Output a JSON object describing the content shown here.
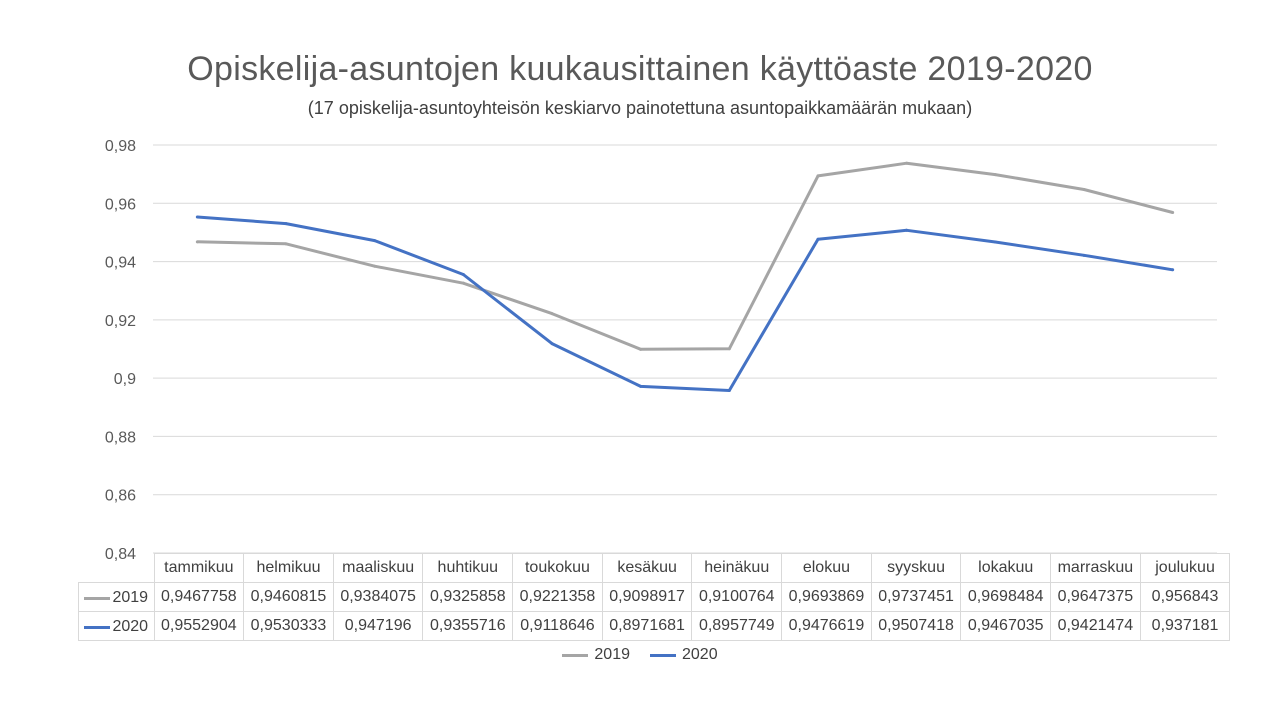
{
  "chart_data": {
    "type": "line",
    "title": "Opiskelija-asuntojen kuukausittainen käyttöaste 2019-2020",
    "subtitle": "(17 opiskelija-asuntoyhteisön keskiarvo painotettuna asuntopaikkamäärän mukaan)",
    "categories": [
      "tammikuu",
      "helmikuu",
      "maaliskuu",
      "huhtikuu",
      "toukokuu",
      "kesäkuu",
      "heinäkuu",
      "elokuu",
      "syyskuu",
      "lokakuu",
      "marraskuu",
      "joulukuu"
    ],
    "series": [
      {
        "name": "2019",
        "color": "#a5a5a5",
        "values": [
          0.9467758,
          0.9460815,
          0.9384075,
          0.9325858,
          0.9221358,
          0.9098917,
          0.9100764,
          0.9693869,
          0.9737451,
          0.9698484,
          0.9647375,
          0.956843
        ],
        "labels": [
          "0,9467758",
          "0,9460815",
          "0,9384075",
          "0,9325858",
          "0,9221358",
          "0,9098917",
          "0,9100764",
          "0,9693869",
          "0,9737451",
          "0,9698484",
          "0,9647375",
          "0,956843"
        ]
      },
      {
        "name": "2020",
        "color": "#4472c4",
        "values": [
          0.9552904,
          0.9530333,
          0.947196,
          0.9355716,
          0.9118646,
          0.8971681,
          0.8957749,
          0.9476619,
          0.9507418,
          0.9467035,
          0.9421474,
          0.937181
        ],
        "labels": [
          "0,9552904",
          "0,9530333",
          "0,947196",
          "0,9355716",
          "0,9118646",
          "0,8971681",
          "0,8957749",
          "0,9476619",
          "0,9507418",
          "0,9467035",
          "0,9421474",
          "0,937181"
        ]
      }
    ],
    "ylim": [
      0.84,
      0.98
    ],
    "yticks": [
      0.84,
      0.86,
      0.88,
      0.9,
      0.92,
      0.94,
      0.96,
      0.98
    ],
    "ytick_labels": [
      "0,84",
      "0,86",
      "0,88",
      "0,9",
      "0,92",
      "0,94",
      "0,96",
      "0,98"
    ],
    "grid": true,
    "legend_position": "bottom",
    "data_table": true
  }
}
